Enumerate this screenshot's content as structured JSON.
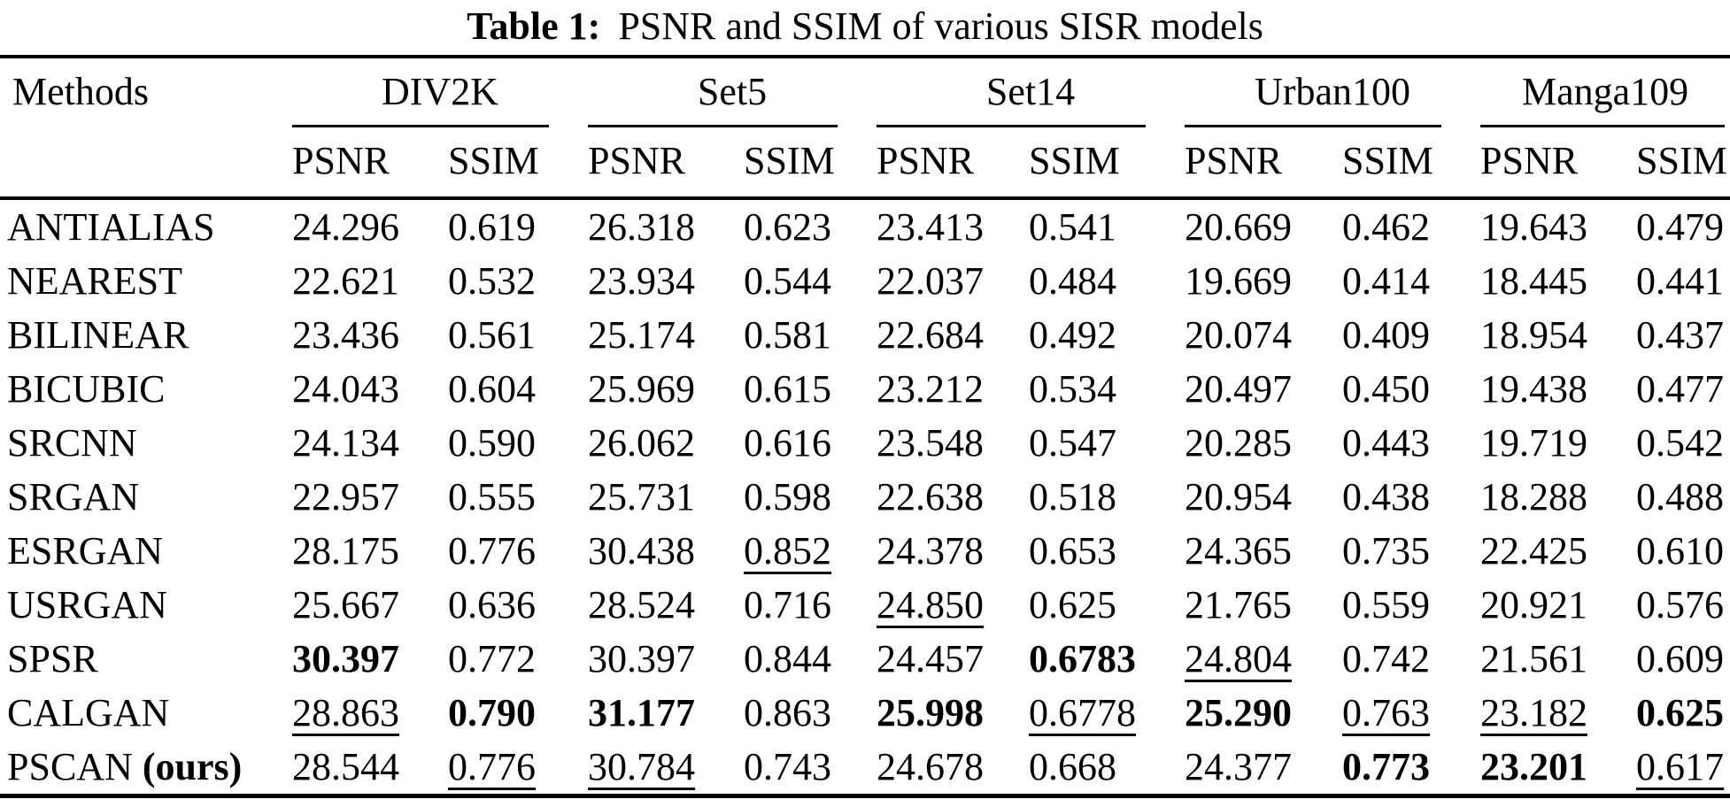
{
  "caption": {
    "label": "Table 1:",
    "text": "PSNR and SSIM of various SISR models"
  },
  "table": {
    "methods_header": "Methods",
    "groups": [
      {
        "name": "DIV2K",
        "metrics": [
          "PSNR",
          "SSIM"
        ]
      },
      {
        "name": "Set5",
        "metrics": [
          "PSNR",
          "SSIM"
        ]
      },
      {
        "name": "Set14",
        "metrics": [
          "PSNR",
          "SSIM"
        ]
      },
      {
        "name": "Urban100",
        "metrics": [
          "PSNR",
          "SSIM"
        ]
      },
      {
        "name": "Manga109",
        "metrics": [
          "PSNR",
          "SSIM"
        ]
      }
    ],
    "rows": [
      {
        "method": "ANTIALIAS",
        "suffix": "",
        "cells": [
          {
            "v": "24.296"
          },
          {
            "v": "0.619"
          },
          {
            "v": "26.318"
          },
          {
            "v": "0.623"
          },
          {
            "v": "23.413"
          },
          {
            "v": "0.541"
          },
          {
            "v": "20.669"
          },
          {
            "v": "0.462"
          },
          {
            "v": "19.643"
          },
          {
            "v": "0.479"
          }
        ]
      },
      {
        "method": "NEAREST",
        "suffix": "",
        "cells": [
          {
            "v": "22.621"
          },
          {
            "v": "0.532"
          },
          {
            "v": "23.934"
          },
          {
            "v": "0.544"
          },
          {
            "v": "22.037"
          },
          {
            "v": "0.484"
          },
          {
            "v": "19.669"
          },
          {
            "v": "0.414"
          },
          {
            "v": "18.445"
          },
          {
            "v": "0.441"
          }
        ]
      },
      {
        "method": "BILINEAR",
        "suffix": "",
        "cells": [
          {
            "v": "23.436"
          },
          {
            "v": "0.561"
          },
          {
            "v": "25.174"
          },
          {
            "v": "0.581"
          },
          {
            "v": "22.684"
          },
          {
            "v": "0.492"
          },
          {
            "v": "20.074"
          },
          {
            "v": "0.409"
          },
          {
            "v": "18.954"
          },
          {
            "v": "0.437"
          }
        ]
      },
      {
        "method": "BICUBIC",
        "suffix": "",
        "cells": [
          {
            "v": "24.043"
          },
          {
            "v": "0.604"
          },
          {
            "v": "25.969"
          },
          {
            "v": "0.615"
          },
          {
            "v": "23.212"
          },
          {
            "v": "0.534"
          },
          {
            "v": "20.497"
          },
          {
            "v": "0.450"
          },
          {
            "v": "19.438"
          },
          {
            "v": "0.477"
          }
        ]
      },
      {
        "method": "SRCNN",
        "suffix": "",
        "cells": [
          {
            "v": "24.134"
          },
          {
            "v": "0.590"
          },
          {
            "v": "26.062"
          },
          {
            "v": "0.616"
          },
          {
            "v": "23.548"
          },
          {
            "v": "0.547"
          },
          {
            "v": "20.285"
          },
          {
            "v": "0.443"
          },
          {
            "v": "19.719"
          },
          {
            "v": "0.542"
          }
        ]
      },
      {
        "method": "SRGAN",
        "suffix": "",
        "cells": [
          {
            "v": "22.957"
          },
          {
            "v": "0.555"
          },
          {
            "v": "25.731"
          },
          {
            "v": "0.598"
          },
          {
            "v": "22.638"
          },
          {
            "v": "0.518"
          },
          {
            "v": "20.954"
          },
          {
            "v": "0.438"
          },
          {
            "v": "18.288"
          },
          {
            "v": "0.488"
          }
        ]
      },
      {
        "method": "ESRGAN",
        "suffix": "",
        "cells": [
          {
            "v": "28.175"
          },
          {
            "v": "0.776"
          },
          {
            "v": "30.438"
          },
          {
            "v": "0.852",
            "u": true
          },
          {
            "v": "24.378"
          },
          {
            "v": "0.653"
          },
          {
            "v": "24.365"
          },
          {
            "v": "0.735"
          },
          {
            "v": "22.425"
          },
          {
            "v": "0.610"
          }
        ]
      },
      {
        "method": "USRGAN",
        "suffix": "",
        "cells": [
          {
            "v": "25.667"
          },
          {
            "v": "0.636"
          },
          {
            "v": "28.524"
          },
          {
            "v": "0.716"
          },
          {
            "v": "24.850",
            "u": true
          },
          {
            "v": "0.625"
          },
          {
            "v": "21.765"
          },
          {
            "v": "0.559"
          },
          {
            "v": "20.921"
          },
          {
            "v": "0.576"
          }
        ]
      },
      {
        "method": "SPSR",
        "suffix": "",
        "cells": [
          {
            "v": "30.397",
            "b": true
          },
          {
            "v": "0.772"
          },
          {
            "v": "30.397"
          },
          {
            "v": "0.844"
          },
          {
            "v": "24.457"
          },
          {
            "v": "0.6783",
            "b": true
          },
          {
            "v": "24.804",
            "u": true
          },
          {
            "v": "0.742"
          },
          {
            "v": "21.561"
          },
          {
            "v": "0.609"
          }
        ]
      },
      {
        "method": "CALGAN",
        "suffix": "",
        "cells": [
          {
            "v": "28.863",
            "u": true
          },
          {
            "v": "0.790",
            "b": true
          },
          {
            "v": "31.177",
            "b": true
          },
          {
            "v": "0.863"
          },
          {
            "v": "25.998",
            "b": true
          },
          {
            "v": "0.6778",
            "u": true
          },
          {
            "v": "25.290",
            "b": true
          },
          {
            "v": "0.763",
            "u": true
          },
          {
            "v": "23.182",
            "u": true
          },
          {
            "v": "0.625",
            "b": true
          }
        ]
      },
      {
        "method": "PSCAN",
        "suffix": "(ours)",
        "cells": [
          {
            "v": "28.544"
          },
          {
            "v": "0.776",
            "u": true
          },
          {
            "v": "30.784",
            "u": true
          },
          {
            "v": "0.743"
          },
          {
            "v": "24.678"
          },
          {
            "v": "0.668"
          },
          {
            "v": "24.377"
          },
          {
            "v": "0.773",
            "b": true
          },
          {
            "v": "23.201",
            "b": true
          },
          {
            "v": "0.617",
            "u": true
          }
        ]
      }
    ]
  }
}
